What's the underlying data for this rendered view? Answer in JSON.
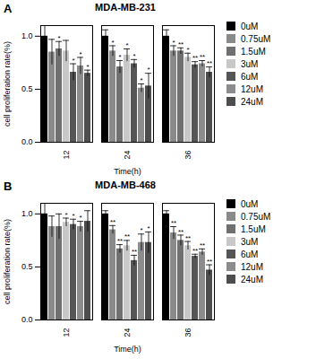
{
  "chart_data": [
    {
      "type": "bar",
      "title": "MDA-MB-231",
      "annotations": [
        "A"
      ],
      "x_label": "Time(h)",
      "y_label": "cell proliferation rate(%)",
      "categories": [
        "12",
        "24",
        "36"
      ],
      "series": [
        {
          "name": "0uM",
          "color": "#000000",
          "values": [
            1.0,
            1.0,
            1.0
          ],
          "errors": [
            0.1,
            0.06,
            0.06
          ],
          "significance": [
            null,
            null,
            null
          ]
        },
        {
          "name": "0.75uM",
          "color": "#8a8a8a",
          "values": [
            0.85,
            0.86,
            0.86
          ],
          "errors": [
            0.12,
            0.05,
            0.05
          ],
          "significance": [
            null,
            "*",
            "*"
          ]
        },
        {
          "name": "1.5uM",
          "color": "#707070",
          "values": [
            0.88,
            0.71,
            0.86
          ],
          "errors": [
            0.07,
            0.06,
            0.03
          ],
          "significance": [
            "*",
            "*",
            "**"
          ]
        },
        {
          "name": "3uM",
          "color": "#c8c8c8",
          "values": [
            0.86,
            0.82,
            0.8
          ],
          "errors": [
            0.1,
            0.06,
            0.04
          ],
          "significance": [
            null,
            "*",
            "*"
          ]
        },
        {
          "name": "6uM",
          "color": "#555555",
          "values": [
            0.66,
            0.74,
            0.73
          ],
          "errors": [
            0.08,
            0.04,
            0.03
          ],
          "significance": [
            "*",
            "*",
            "**"
          ]
        },
        {
          "name": "12uM",
          "color": "#8c8c8c",
          "values": [
            0.72,
            0.51,
            0.74
          ],
          "errors": [
            0.08,
            0.04,
            0.03
          ],
          "significance": [
            "*",
            "*",
            "**"
          ]
        },
        {
          "name": "24uM",
          "color": "#4d4d4d",
          "values": [
            0.65,
            0.53,
            0.66
          ],
          "errors": [
            0.03,
            0.12,
            0.05
          ],
          "significance": [
            "*",
            "*",
            "**"
          ]
        }
      ],
      "ylim": [
        0,
        1.1
      ],
      "yticks": [
        {
          "value": 0,
          "label": "0.0"
        },
        {
          "value": 0.5,
          "label": "0.5"
        },
        {
          "value": 1,
          "label": "1.0"
        }
      ],
      "grid": false,
      "legend": "right"
    },
    {
      "type": "bar",
      "title": "MDA-MB-468",
      "annotations": [
        "B"
      ],
      "x_label": "Time(h)",
      "y_label": "cell proliferation rate(%)",
      "categories": [
        "12",
        "24",
        "36"
      ],
      "series": [
        {
          "name": "0uM",
          "color": "#000000",
          "values": [
            1.0,
            1.0,
            1.0
          ],
          "errors": [
            0.1,
            0.03,
            0.03
          ],
          "significance": [
            null,
            null,
            null
          ]
        },
        {
          "name": "0.75uM",
          "color": "#8a8a8a",
          "values": [
            0.88,
            0.85,
            0.82
          ],
          "errors": [
            0.1,
            0.04,
            0.06
          ],
          "significance": [
            null,
            "**",
            "**"
          ]
        },
        {
          "name": "1.5uM",
          "color": "#707070",
          "values": [
            0.88,
            0.67,
            0.75
          ],
          "errors": [
            0.12,
            0.04,
            0.05
          ],
          "significance": [
            null,
            "**",
            "**"
          ]
        },
        {
          "name": "3uM",
          "color": "#c8c8c8",
          "values": [
            0.92,
            0.7,
            0.7
          ],
          "errors": [
            0.04,
            0.05,
            0.04
          ],
          "significance": [
            "*",
            "**",
            "**"
          ]
        },
        {
          "name": "6uM",
          "color": "#555555",
          "values": [
            0.9,
            0.56,
            0.6
          ],
          "errors": [
            0.05,
            0.05,
            0.02
          ],
          "significance": [
            "*",
            "**",
            "**"
          ]
        },
        {
          "name": "12uM",
          "color": "#8c8c8c",
          "values": [
            0.88,
            0.73,
            0.64
          ],
          "errors": [
            0.05,
            0.08,
            0.03
          ],
          "significance": [
            "*",
            "*",
            "**"
          ]
        },
        {
          "name": "24uM",
          "color": "#4d4d4d",
          "values": [
            0.93,
            0.73,
            0.47
          ],
          "errors": [
            0.1,
            0.1,
            0.05
          ],
          "significance": [
            null,
            "*",
            "**"
          ]
        }
      ],
      "ylim": [
        0,
        1.1
      ],
      "yticks": [
        {
          "value": 0,
          "label": "0.0"
        },
        {
          "value": 0.5,
          "label": "0.5"
        },
        {
          "value": 1,
          "label": "1.0"
        }
      ],
      "grid": false,
      "legend": "right"
    }
  ]
}
